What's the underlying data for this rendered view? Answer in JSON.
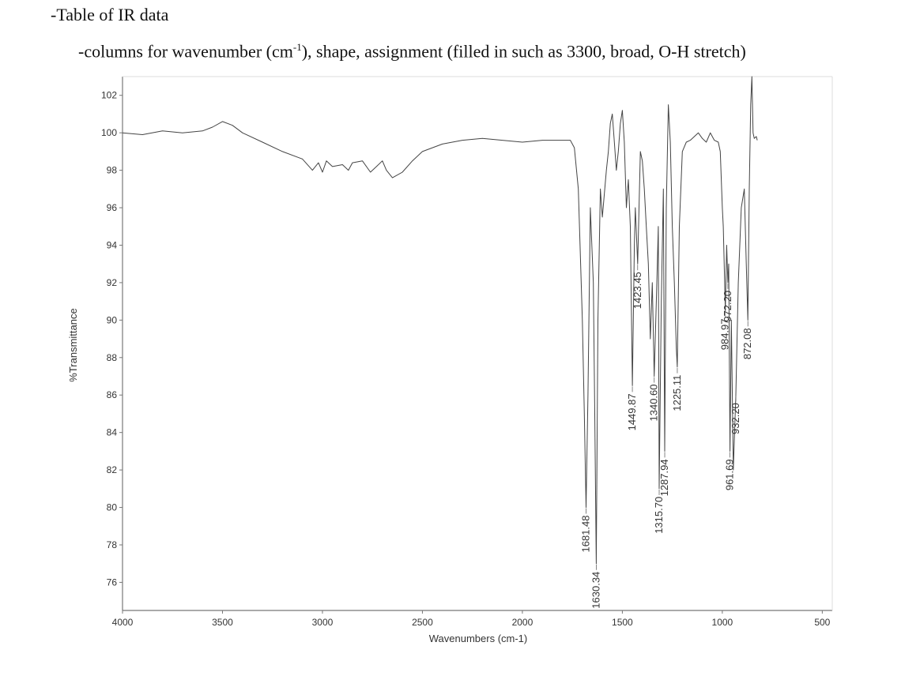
{
  "instructions": {
    "line1": "-Table of IR data",
    "line2_a": "-columns for wavenumber (cm",
    "line2_sup": "-1",
    "line2_b": "), shape, assignment (filled in such as 3300, broad, O-H stretch)"
  },
  "chart_data": {
    "type": "line",
    "title": "",
    "xlabel": "Wavenumbers (cm-1)",
    "ylabel": "%Transmittance",
    "x_reversed": true,
    "xlim": [
      4000,
      450
    ],
    "ylim": [
      74.5,
      103
    ],
    "xticks": [
      4000,
      3500,
      3000,
      2500,
      2000,
      1500,
      1000,
      500
    ],
    "yticks": [
      76,
      78,
      80,
      82,
      84,
      86,
      88,
      90,
      92,
      94,
      96,
      98,
      100,
      102
    ],
    "grid": false,
    "series": [
      {
        "x": [
          4000,
          3900,
          3800,
          3700,
          3600,
          3550,
          3500,
          3450,
          3400,
          3300,
          3200,
          3100,
          3050,
          3020,
          3000,
          2980,
          2950,
          2900,
          2870,
          2850,
          2800,
          2760,
          2730,
          2700,
          2680,
          2650,
          2600,
          2550,
          2500,
          2400,
          2300,
          2200,
          2100,
          2000,
          1900,
          1800,
          1760,
          1740,
          1720,
          1700,
          1690,
          1681.48,
          1672,
          1660,
          1645,
          1638,
          1630.34,
          1622,
          1610,
          1600,
          1580,
          1570,
          1560,
          1550,
          1540,
          1530,
          1520,
          1510,
          1500,
          1490,
          1480,
          1470,
          1460,
          1449.87,
          1440,
          1435,
          1423.45,
          1410,
          1400,
          1390,
          1380,
          1370,
          1360,
          1350,
          1340.6,
          1330,
          1320,
          1315.7,
          1305,
          1295,
          1287.94,
          1280,
          1270,
          1260,
          1250,
          1240,
          1230,
          1225.11,
          1215,
          1200,
          1180,
          1160,
          1140,
          1120,
          1100,
          1080,
          1060,
          1040,
          1020,
          1010,
          1000,
          995,
          984.97,
          978,
          972.2,
          968,
          961.69,
          955,
          945,
          932.2,
          920,
          905,
          890,
          880,
          872.08,
          865,
          858,
          852,
          846,
          840,
          830,
          825
        ],
        "y": [
          100.0,
          99.9,
          100.1,
          100.0,
          100.1,
          100.3,
          100.6,
          100.4,
          100.0,
          99.5,
          99.0,
          98.6,
          98.0,
          98.4,
          97.9,
          98.5,
          98.2,
          98.3,
          98.0,
          98.4,
          98.5,
          97.9,
          98.2,
          98.5,
          98.0,
          97.6,
          97.9,
          98.5,
          99.0,
          99.4,
          99.6,
          99.7,
          99.6,
          99.5,
          99.6,
          99.6,
          99.6,
          99.2,
          97.0,
          90.0,
          85.0,
          80.0,
          86.0,
          96.0,
          92.0,
          85.0,
          77.0,
          90.0,
          97.0,
          95.5,
          98.0,
          99.0,
          100.5,
          101.0,
          99.5,
          98.0,
          99.0,
          100.5,
          101.2,
          99.5,
          96.0,
          97.5,
          95.0,
          86.5,
          94.0,
          96.0,
          93.0,
          99.0,
          98.5,
          97.0,
          95.0,
          93.0,
          89.0,
          92.0,
          87.0,
          91.0,
          95.0,
          81.0,
          91.0,
          97.0,
          83.0,
          96.0,
          101.5,
          99.5,
          95.0,
          92.0,
          88.5,
          87.5,
          95.0,
          99.0,
          99.5,
          99.6,
          99.8,
          100.0,
          99.7,
          99.5,
          100.0,
          99.6,
          99.5,
          99.0,
          96.0,
          95.0,
          90.5,
          94.0,
          92.0,
          93.0,
          83.0,
          90.0,
          82.0,
          86.0,
          92.0,
          96.0,
          97.0,
          93.0,
          90.0,
          97.0,
          101.5,
          103.0,
          100.0,
          99.7,
          99.8,
          99.6
        ]
      }
    ],
    "peaks": [
      {
        "x": 1681.48,
        "label": "1681.48"
      },
      {
        "x": 1630.34,
        "label": "1630.34"
      },
      {
        "x": 1449.87,
        "label": "1449.87"
      },
      {
        "x": 1423.45,
        "label": "1423.45"
      },
      {
        "x": 1340.6,
        "label": "1340.60"
      },
      {
        "x": 1315.7,
        "label": "1315.70"
      },
      {
        "x": 1287.94,
        "label": "1287.94"
      },
      {
        "x": 1225.11,
        "label": "1225.11"
      },
      {
        "x": 984.97,
        "label": "984.97"
      },
      {
        "x": 972.2,
        "label": "972.20"
      },
      {
        "x": 961.69,
        "label": "961.69"
      },
      {
        "x": 932.2,
        "label": "932.20"
      },
      {
        "x": 872.08,
        "label": "872.08"
      }
    ]
  }
}
